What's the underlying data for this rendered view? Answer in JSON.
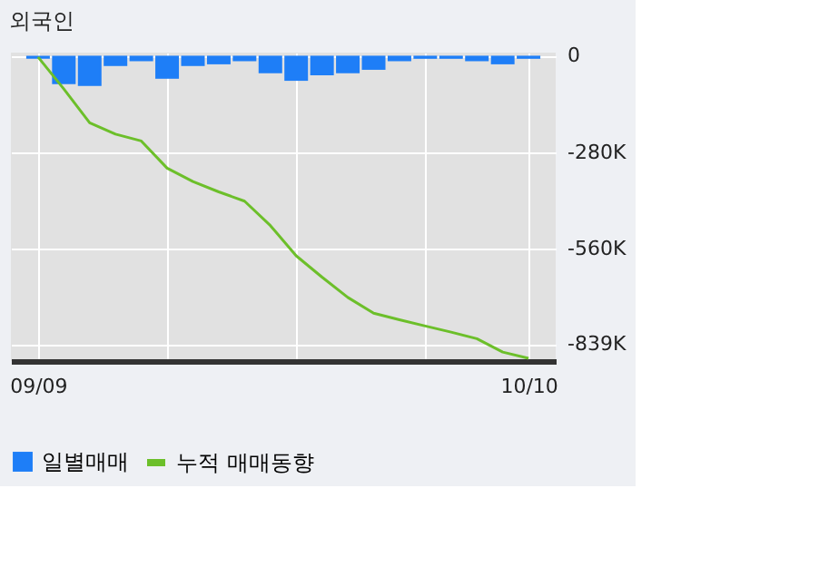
{
  "chart_data": {
    "type": "bar",
    "title": "외국인",
    "categories": [
      "09/09",
      null,
      null,
      null,
      null,
      null,
      null,
      null,
      null,
      null,
      null,
      null,
      null,
      null,
      null,
      null,
      null,
      null,
      null,
      "10/10"
    ],
    "series": [
      {
        "name": "일별매매",
        "type": "bar",
        "color": "#1e7ef7",
        "values": [
          -9,
          -83,
          -88,
          -30,
          -16,
          -67,
          -30,
          -25,
          -16,
          -51,
          -73,
          -57,
          -51,
          -41,
          -16,
          -9,
          -9,
          -16,
          -25,
          -9
        ]
      },
      {
        "name": "누적 매매동향",
        "type": "line",
        "color": "#6cbf2a",
        "values": [
          -4,
          -97,
          -195,
          -228,
          -248,
          -327,
          -366,
          -396,
          -423,
          -494,
          -582,
          -644,
          -703,
          -749,
          -768,
          -786,
          -804,
          -823,
          -862,
          -880
        ]
      }
    ],
    "ylim": [
      -888,
      9
    ],
    "yticks": [
      0,
      {
        "value": -280,
        "label": "-280K"
      },
      {
        "value": -560,
        "label": "-560K"
      },
      {
        "value": -839,
        "label": "-839K"
      }
    ],
    "grid": true,
    "legend": "bottom"
  }
}
